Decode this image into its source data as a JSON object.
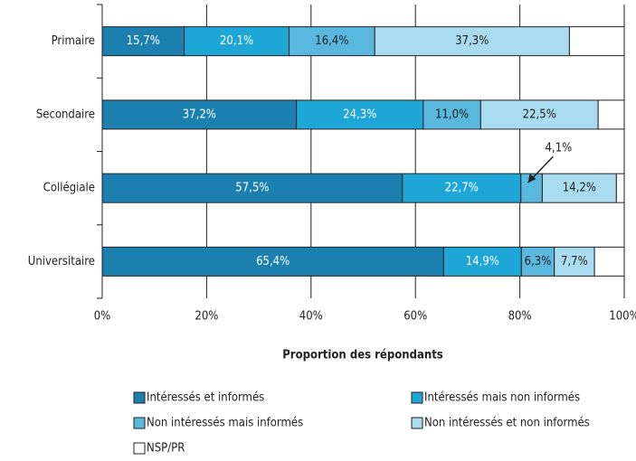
{
  "chart_data": {
    "type": "stacked-bar-horizontal",
    "categories": [
      "Primaire",
      "Secondaire",
      "Collégiale",
      "Universitaire"
    ],
    "series": [
      {
        "name": "Intéressés et informés",
        "color": "#1b80b0",
        "values": [
          15.7,
          37.2,
          57.5,
          65.4
        ],
        "value_labels": [
          "15,7%",
          "37,2%",
          "57,5%",
          "65,4%"
        ]
      },
      {
        "name": "Intéressés mais non informés",
        "color": "#1ea6d6",
        "values": [
          20.1,
          24.3,
          22.7,
          14.9
        ],
        "value_labels": [
          "20,1%",
          "24,3%",
          "22,7%",
          "14,9%"
        ]
      },
      {
        "name": "Non intéressés mais informés",
        "color": "#5ab7de",
        "values": [
          16.4,
          11.0,
          4.1,
          6.3
        ],
        "value_labels": [
          "16,4%",
          "11,0%",
          "4,1%",
          "6,3%"
        ]
      },
      {
        "name": "Non intéressés et non informés",
        "color": "#a9dcf1",
        "values": [
          37.3,
          22.5,
          14.2,
          7.7
        ],
        "value_labels": [
          "37,3%",
          "22,5%",
          "14,2%",
          "7,7%"
        ]
      },
      {
        "name": "NSP/PR",
        "color": "#ffffff",
        "values": [
          10.5,
          5.0,
          1.5,
          5.7
        ]
      }
    ],
    "xlabel": "Proportion des répondants",
    "xlim": [
      0,
      100
    ],
    "xticks": [
      {
        "value": 0,
        "label": "0%"
      },
      {
        "value": 20,
        "label": "20%"
      },
      {
        "value": 40,
        "label": "40%"
      },
      {
        "value": 60,
        "label": "60%"
      },
      {
        "value": 80,
        "label": "80%"
      },
      {
        "value": 100,
        "label": "100%"
      }
    ],
    "grid": true
  }
}
